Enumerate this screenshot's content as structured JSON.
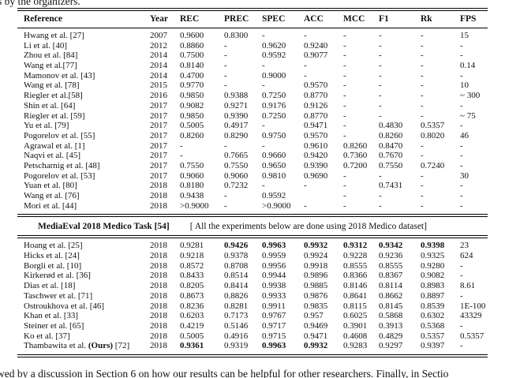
{
  "page": {
    "top_text": "s by the organizers.",
    "bottom_text": "wed by a discussion in Section 6 on how our results can be helpful for other researchers. Finally, in Sectio"
  },
  "table": {
    "columns": [
      "Reference",
      "Year",
      "REC",
      "PREC",
      "SPEC",
      "ACC",
      "MCC",
      "F1",
      "Rk",
      "FPS"
    ],
    "section1": [
      {
        "ref": "Hwang et al. [27]",
        "year": "2007",
        "vals": [
          "0.9600",
          "0.8300",
          "-",
          "-",
          "-",
          "-",
          "-",
          "15"
        ]
      },
      {
        "ref": "Li et al. [40]",
        "year": "2012",
        "vals": [
          "0.8860",
          "-",
          "0.9620",
          "0.9240",
          "-",
          "-",
          "-",
          "-"
        ]
      },
      {
        "ref": "Zhou et al. [84]",
        "year": "2014",
        "vals": [
          "0.7500",
          "-",
          "0.9592",
          "0.9077",
          "-",
          "-",
          "-",
          "-"
        ]
      },
      {
        "ref": "Wang et al.[77]",
        "year": "2014",
        "vals": [
          "0.8140",
          "-",
          "-",
          "-",
          "-",
          "-",
          "-",
          "0.14"
        ]
      },
      {
        "ref": "Mamonov et al. [43]",
        "year": "2014",
        "vals": [
          "0.4700",
          "-",
          "0.9000",
          "-",
          "-",
          "-",
          "-",
          "-"
        ]
      },
      {
        "ref": "Wang et al. [78]",
        "year": "2015",
        "vals": [
          "0.9770",
          "-",
          "-",
          "0.9570",
          "-",
          "-",
          "-",
          "10"
        ]
      },
      {
        "ref": "Riegler et al.[58]",
        "year": "2016",
        "vals": [
          "0.9850",
          "0.9388",
          "0.7250",
          "0.8770",
          "-",
          "-",
          "-",
          "~ 300"
        ]
      },
      {
        "ref": "Shin et al. [64]",
        "year": "2017",
        "vals": [
          "0.9082",
          "0.9271",
          "0.9176",
          "0.9126",
          "-",
          "-",
          "-",
          "-"
        ]
      },
      {
        "ref": "Riegler et al. [59]",
        "year": "2017",
        "vals": [
          "0.9850",
          "0.9390",
          "0.7250",
          "0.8770",
          "-",
          "-",
          "-",
          "~ 75"
        ]
      },
      {
        "ref": "Yu et al. [79]",
        "year": "2017",
        "vals": [
          "0.5005",
          "0.4917",
          "-",
          "0.9471",
          "-",
          "0.4830",
          "0.5357",
          "-"
        ]
      },
      {
        "ref": "Pogorelov et al. [55]",
        "year": "2017",
        "vals": [
          "0.8260",
          "0.8290",
          "0.9750",
          "0.9570",
          "-",
          "0.8260",
          "0.8020",
          "46"
        ]
      },
      {
        "ref": "Agrawal et al. [1]",
        "year": "2017",
        "vals": [
          "-",
          "-",
          "-",
          "0.9610",
          "0.8260",
          "0.8470",
          "-",
          "-"
        ]
      },
      {
        "ref": "Naqvi et al. [45]",
        "year": "2017",
        "vals": [
          "-",
          "0.7665",
          "0.9660",
          "0.9420",
          "0.7360",
          "0.7670",
          "-",
          "-"
        ]
      },
      {
        "ref": "Petscharnig et al. [48]",
        "year": "2017",
        "vals": [
          "0.7550",
          "0.7550",
          "0.9650",
          "0.9390",
          "0.7200",
          "0.7550",
          "0.7240",
          "-"
        ]
      },
      {
        "ref": "Pogorelov et al. [53]",
        "year": "2017",
        "vals": [
          "0.9060",
          "0.9060",
          "0.9810",
          "0.9690",
          "-",
          "-",
          "-",
          "30"
        ]
      },
      {
        "ref": "Yuan et al. [80]",
        "year": "2018",
        "vals": [
          "0.8180",
          "0.7232",
          "-",
          "-",
          "-",
          "0.7431",
          "-",
          "-"
        ]
      },
      {
        "ref": "Wang et al. [76]",
        "year": "2018",
        "vals": [
          "0.9438",
          "-",
          "0.9592",
          "",
          "-",
          "-",
          "-",
          "-"
        ]
      },
      {
        "ref": "Mori et al. [44]",
        "year": "2018",
        "vals": [
          ">0.9000",
          "-",
          ">0.9000",
          "-",
          "-",
          "-",
          "-",
          "-"
        ]
      }
    ],
    "divider": {
      "title": "MediaEval 2018 Medico Task [54]",
      "note": "[ All the experiments below are done using 2018 Medico dataset]"
    },
    "section2": [
      {
        "ref": "Hoang et al. [25]",
        "year": "2018",
        "vals": [
          "0.9281",
          "0.9426",
          "0.9963",
          "0.9932",
          "0.9312",
          "0.9342",
          "0.9398",
          "23"
        ],
        "bold": [
          1,
          2,
          3,
          4,
          5,
          6
        ]
      },
      {
        "ref": "Hicks et al. [24]",
        "year": "2018",
        "vals": [
          "0.9218",
          "0.9378",
          "0.9959",
          "0.9924",
          "0.9228",
          "0.9236",
          "0.9325",
          "624"
        ]
      },
      {
        "ref": "Borgli et al. [10]",
        "year": "2018",
        "vals": [
          "0.8572",
          "0.8708",
          "0.9956",
          "0.9918",
          "0.8555",
          "0.8555",
          "0.9280",
          "-"
        ]
      },
      {
        "ref": "Kirkerød et al. [36]",
        "year": "2018",
        "vals": [
          "0.8433",
          "0.8514",
          "0.9944",
          "0.9896",
          "0.8366",
          "0.8367",
          "0.9082",
          "-"
        ]
      },
      {
        "ref": "Dias et al. [18]",
        "year": "2018",
        "vals": [
          "0.8205",
          "0.8414",
          "0.9938",
          "0.9885",
          "0.8146",
          "0.8114",
          "0.8983",
          "8.61"
        ]
      },
      {
        "ref": "Taschwer et al. [71]",
        "year": "2018",
        "vals": [
          "0.8673",
          "0.8826",
          "0.9933",
          "0.9876",
          "0.8641",
          "0.8662",
          "0.8897",
          "-"
        ]
      },
      {
        "ref": "Ostroukhova et al. [46]",
        "year": "2018",
        "vals": [
          "0.8236",
          "0.8281",
          "0.9911",
          "0.9835",
          "0.8115",
          "0.8145",
          "0.8539",
          "1E-100"
        ]
      },
      {
        "ref": "Khan et al. [33]",
        "year": "2018",
        "vals": [
          "0.6203",
          "0.7173",
          "0.9767",
          "0.957",
          "0.6025",
          "0.5868",
          "0.6302",
          "43329"
        ]
      },
      {
        "ref": "Steiner et al. [65]",
        "year": "2018",
        "vals": [
          "0.4219",
          "0.5146",
          "0.9717",
          "0.9469",
          "0.3901",
          "0.3913",
          "0.5368",
          "-"
        ]
      },
      {
        "ref": "Ko et al. [37]",
        "year": "2018",
        "vals": [
          "0.5005",
          "0.4916",
          "0.9715",
          "0.9471",
          "0.4608",
          "0.4829",
          "0.5357",
          "0.5357"
        ]
      },
      {
        "ref_parts": [
          [
            "Thambawita et al. ",
            0
          ],
          [
            "(Ours)",
            1
          ],
          [
            " [72]",
            0
          ]
        ],
        "year": "2018",
        "vals": [
          "0.9361",
          "0.9319",
          "0.9963",
          "0.9932",
          "0.9283",
          "0.9297",
          "0.9397",
          "-"
        ],
        "bold": [
          0,
          2,
          3
        ]
      }
    ]
  }
}
